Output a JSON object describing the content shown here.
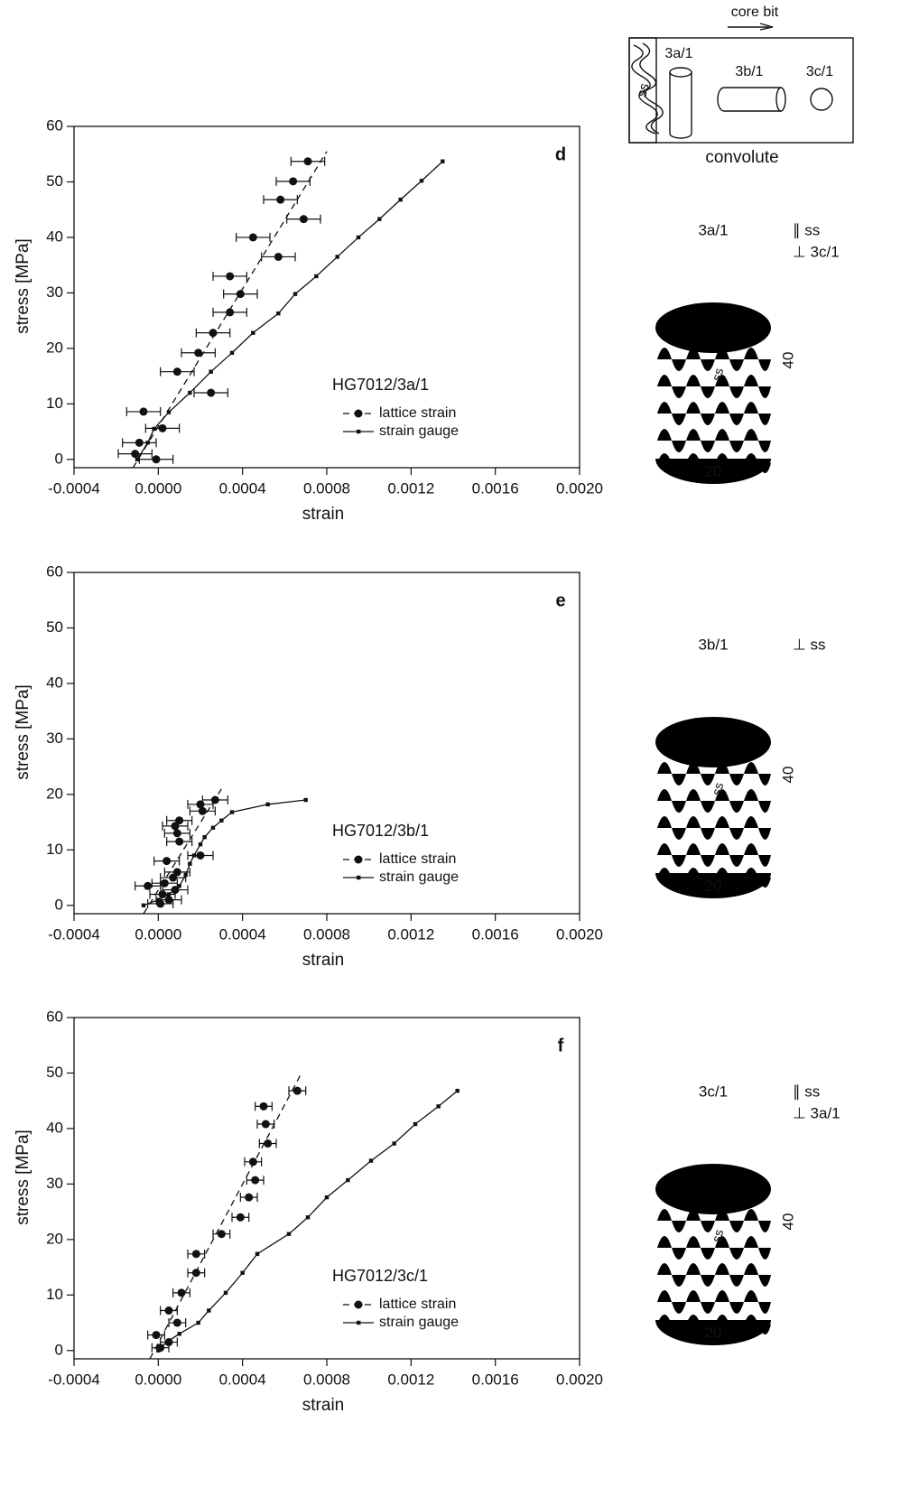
{
  "chart_data": [
    {
      "type": "scatter",
      "panel_label": "d",
      "annotation": "HG7012/3a/1",
      "x_label": "strain",
      "y_label": "stress [MPa]",
      "xlim": [
        -0.0004,
        0.002
      ],
      "ylim": [
        -1.5,
        60
      ],
      "xticks": [
        {
          "value": -0.0004,
          "label": "-0.0004"
        },
        {
          "value": 0,
          "label": "0.0000"
        },
        {
          "value": 0.0004,
          "label": "0.0004"
        },
        {
          "value": 0.0008,
          "label": "0.0008"
        },
        {
          "value": 0.0012,
          "label": "0.0012"
        },
        {
          "value": 0.0016,
          "label": "0.0016"
        },
        {
          "value": 0.002,
          "label": "0.0020"
        }
      ],
      "yticks": [
        0,
        10,
        20,
        30,
        40,
        50,
        60
      ],
      "series": [
        {
          "name": "lattice strain",
          "color": "#111111",
          "x": [
            0.00071,
            0.00064,
            0.00058,
            0.00069,
            0.00045,
            0.00057,
            0.00034,
            0.00039,
            0.00034,
            0.00026,
            0.00019,
            9e-05,
            0.00025,
            -7e-05,
            2e-05,
            -9e-05,
            -0.00011,
            -1e-05
          ],
          "values": [
            53.7,
            50.1,
            46.8,
            43.3,
            40.0,
            36.5,
            33.0,
            29.8,
            26.5,
            22.8,
            19.2,
            15.8,
            12.0,
            8.6,
            5.6,
            3.0,
            1.0,
            0.0
          ],
          "errors": [
            8e-05,
            8e-05,
            8e-05,
            8e-05,
            8e-05,
            8e-05,
            8e-05,
            8e-05,
            8e-05,
            8e-05,
            8e-05,
            8e-05,
            8e-05,
            8e-05,
            8e-05,
            8e-05,
            8e-05,
            8e-05
          ],
          "fit": {
            "x": [
              -0.00012,
              0.0008
            ],
            "values": [
              -1.5,
              55.5
            ]
          }
        },
        {
          "name": "strain gauge",
          "color": "#111111",
          "x": [
            -0.0001,
            -5e-05,
            -2e-05,
            5e-05,
            0.00015,
            0.00025,
            0.00035,
            0.00045,
            0.00057,
            0.00065,
            0.00075,
            0.00085,
            0.00095,
            0.00105,
            0.00115,
            0.00125,
            0.00135
          ],
          "values": [
            0,
            3,
            5.5,
            8.5,
            12,
            15.8,
            19.2,
            22.8,
            26.3,
            29.8,
            33,
            36.5,
            40,
            43.3,
            46.8,
            50.2,
            53.7
          ]
        }
      ]
    },
    {
      "type": "scatter",
      "panel_label": "e",
      "annotation": "HG7012/3b/1",
      "x_label": "strain",
      "y_label": "stress [MPa]",
      "xlim": [
        -0.0004,
        0.002
      ],
      "ylim": [
        -1.5,
        60
      ],
      "xticks": [
        {
          "value": -0.0004,
          "label": "-0.0004"
        },
        {
          "value": 0,
          "label": "0.0000"
        },
        {
          "value": 0.0004,
          "label": "0.0004"
        },
        {
          "value": 0.0008,
          "label": "0.0008"
        },
        {
          "value": 0.0012,
          "label": "0.0012"
        },
        {
          "value": 0.0016,
          "label": "0.0016"
        },
        {
          "value": 0.002,
          "label": "0.0020"
        }
      ],
      "yticks": [
        0,
        10,
        20,
        30,
        40,
        50,
        60
      ],
      "series": [
        {
          "name": "lattice strain",
          "color": "#111111",
          "x": [
            0.00027,
            0.0002,
            0.00021,
            0.0001,
            8e-05,
            9e-05,
            0.0001,
            0.0002,
            4e-05,
            9e-05,
            7e-05,
            3e-05,
            -5e-05,
            8e-05,
            2e-05,
            5e-05,
            1e-05
          ],
          "values": [
            19.0,
            18.2,
            17.0,
            15.3,
            14.3,
            13.0,
            11.5,
            9.0,
            8.0,
            6.0,
            5.0,
            4.0,
            3.5,
            2.8,
            2.0,
            1.0,
            0.3
          ],
          "errors": [
            6e-05,
            6e-05,
            6e-05,
            6e-05,
            6e-05,
            6e-05,
            6e-05,
            6e-05,
            6e-05,
            6e-05,
            6e-05,
            6e-05,
            6e-05,
            6e-05,
            6e-05,
            6e-05,
            6e-05
          ],
          "fit": {
            "x": [
              -7e-05,
              0.0003
            ],
            "values": [
              -1.5,
              21
            ]
          }
        },
        {
          "name": "strain gauge",
          "color": "#111111",
          "x": [
            -7e-05,
            0,
            5e-05,
            0.0001,
            0.00013,
            0.00015,
            0.00017,
            0.0002,
            0.00022,
            0.00026,
            0.0003,
            0.00035,
            0.00052,
            0.0007
          ],
          "values": [
            0,
            1,
            2,
            3.5,
            5.5,
            7.5,
            9,
            11,
            12.3,
            14,
            15.3,
            16.8,
            18.2,
            19
          ]
        }
      ]
    },
    {
      "type": "scatter",
      "panel_label": "f",
      "annotation": "HG7012/3c/1",
      "x_label": "strain",
      "y_label": "stress [MPa]",
      "xlim": [
        -0.0004,
        0.002
      ],
      "ylim": [
        -1.5,
        60
      ],
      "xticks": [
        {
          "value": -0.0004,
          "label": "-0.0004"
        },
        {
          "value": 0,
          "label": "0.0000"
        },
        {
          "value": 0.0004,
          "label": "0.0004"
        },
        {
          "value": 0.0008,
          "label": "0.0008"
        },
        {
          "value": 0.0012,
          "label": "0.0012"
        },
        {
          "value": 0.0016,
          "label": "0.0016"
        },
        {
          "value": 0.002,
          "label": "0.0020"
        }
      ],
      "yticks": [
        0,
        10,
        20,
        30,
        40,
        50,
        60
      ],
      "series": [
        {
          "name": "lattice strain",
          "color": "#111111",
          "x": [
            0.00066,
            0.0005,
            0.00051,
            0.00052,
            0.00045,
            0.00046,
            0.00043,
            0.00039,
            0.0003,
            0.00018,
            0.00018,
            0.00011,
            5e-05,
            9e-05,
            -1e-05,
            5e-05,
            1e-05
          ],
          "values": [
            46.8,
            44.0,
            40.8,
            37.3,
            34.0,
            30.7,
            27.6,
            24.0,
            21.0,
            17.4,
            14.0,
            10.4,
            7.2,
            5.0,
            2.8,
            1.5,
            0.5
          ],
          "errors": [
            4e-05,
            4e-05,
            4e-05,
            4e-05,
            4e-05,
            4e-05,
            4e-05,
            4e-05,
            4e-05,
            4e-05,
            4e-05,
            4e-05,
            4e-05,
            4e-05,
            4e-05,
            4e-05,
            4e-05
          ],
          "fit": {
            "x": [
              -4e-05,
              0.00068
            ],
            "values": [
              -1.5,
              50
            ]
          }
        },
        {
          "name": "strain gauge",
          "color": "#111111",
          "x": [
            0,
            4e-05,
            0.0001,
            0.00019,
            0.00024,
            0.00032,
            0.0004,
            0.00047,
            0.00062,
            0.00071,
            0.0008,
            0.0009,
            0.00101,
            0.00112,
            0.00122,
            0.00133,
            0.00142
          ],
          "values": [
            0,
            1.5,
            3,
            5,
            7.2,
            10.4,
            14,
            17.4,
            21,
            24,
            27.6,
            30.7,
            34.2,
            37.3,
            40.8,
            44,
            46.8
          ]
        }
      ]
    }
  ],
  "diagrams": {
    "core_box": {
      "arrow_label": "core bit",
      "strip_label": "ss",
      "samples": [
        "3a/1",
        "3b/1",
        "3c/1"
      ],
      "caption": "convolute"
    },
    "cylinders": [
      {
        "label": "3a/1",
        "orientation": [
          "∥ ss",
          "⊥ 3c/1"
        ],
        "foliation": "ss",
        "height": "40",
        "width": "20"
      },
      {
        "label": "3b/1",
        "orientation": [
          "⊥ ss"
        ],
        "foliation": "ss",
        "height": "40",
        "width": "20"
      },
      {
        "label": "3c/1",
        "orientation": [
          "∥ ss",
          "⊥ 3a/1"
        ],
        "foliation": "ss",
        "height": "40",
        "width": "20"
      }
    ]
  }
}
